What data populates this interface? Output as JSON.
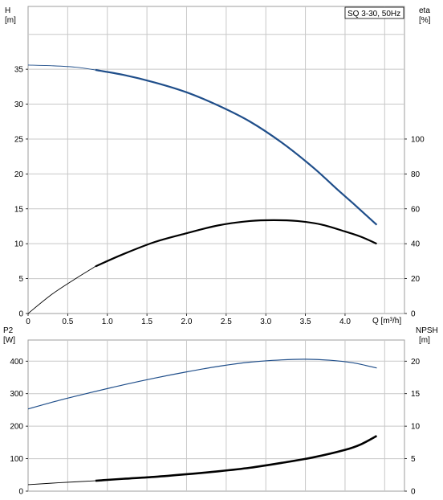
{
  "chart_data": [
    {
      "type": "line",
      "badge": "SQ 3-30, 50Hz",
      "x_axis": {
        "label": "Q [m³/h]",
        "range": [
          0,
          4.75
        ],
        "ticks": [
          0,
          0.5,
          1.0,
          1.5,
          2.0,
          2.5,
          3.0,
          3.5,
          4.0
        ],
        "tick_labels": [
          "0",
          "0.5",
          "1.0",
          "1.5",
          "2.0",
          "2.5",
          "3.0",
          "3.5",
          "4.0"
        ],
        "gridlines": [
          0.5,
          1,
          1.5,
          2,
          2.5,
          3,
          3.5,
          4,
          4.5
        ]
      },
      "left_axis": {
        "label_line1": "H",
        "label_line2": "[m]",
        "range": [
          0,
          44
        ],
        "ticks": [
          0,
          5,
          10,
          15,
          20,
          25,
          30,
          35
        ],
        "gridlines": [
          5,
          10,
          15,
          20,
          25,
          30,
          35,
          40
        ]
      },
      "right_axis": {
        "label_line1": "eta",
        "label_line2": "[%]",
        "range": [
          0,
          176
        ],
        "ticks": [
          0,
          20,
          40,
          60,
          80,
          100
        ]
      },
      "grid": true,
      "series": [
        {
          "axis": "left",
          "color": "#1f4e8a",
          "thin_until": 0.85,
          "x": [
            0,
            0.3,
            0.6,
            0.85,
            1.2,
            1.6,
            2.0,
            2.4,
            2.8,
            3.2,
            3.6,
            3.9,
            4.1,
            4.4
          ],
          "y": [
            35.6,
            35.5,
            35.3,
            34.9,
            34.2,
            33.1,
            31.7,
            29.8,
            27.5,
            24.5,
            20.9,
            17.8,
            15.8,
            12.7
          ]
        },
        {
          "axis": "right",
          "color": "#000000",
          "thin_until": 0.85,
          "x": [
            0,
            0.3,
            0.6,
            0.85,
            1.2,
            1.6,
            2.0,
            2.4,
            2.8,
            3.1,
            3.4,
            3.7,
            4.0,
            4.2,
            4.4
          ],
          "y": [
            0,
            11,
            20,
            27,
            34,
            41,
            46,
            50.5,
            53,
            53.5,
            53,
            51,
            47,
            44,
            40
          ]
        }
      ]
    },
    {
      "type": "line",
      "x_axis": {
        "range": [
          0,
          4.75
        ],
        "gridlines": [
          0.5,
          1,
          1.5,
          2,
          2.5,
          3,
          3.5,
          4,
          4.5
        ]
      },
      "left_axis": {
        "label_line1": "P2",
        "label_line2": "[W]",
        "range": [
          0,
          465
        ],
        "ticks": [
          0,
          100,
          200,
          300,
          400
        ],
        "gridlines": [
          100,
          200,
          300,
          400
        ]
      },
      "right_axis": {
        "label_line1": "NPSH",
        "label_line2": "[m]",
        "range": [
          0,
          23.25
        ],
        "ticks": [
          0,
          5,
          10,
          15,
          20
        ]
      },
      "grid": true,
      "series": [
        {
          "axis": "left",
          "color": "#1f4e8a",
          "thin_until": 0,
          "x": [
            0,
            0.4,
            0.8,
            1.2,
            1.6,
            2.0,
            2.4,
            2.8,
            3.2,
            3.5,
            3.8,
            4.1,
            4.4
          ],
          "y": [
            253,
            280,
            304,
            327,
            348,
            367,
            384,
            397,
            404,
            406,
            403,
            395,
            379
          ]
        },
        {
          "axis": "left",
          "color": "#000000",
          "thin_until": 0.85,
          "heavy": true,
          "x": [
            0,
            0.4,
            0.85,
            1.2,
            1.6,
            2.0,
            2.4,
            2.8,
            3.2,
            3.6,
            4.0,
            4.2,
            4.4
          ],
          "y": [
            20,
            26,
            32,
            38,
            44,
            52,
            61,
            72,
            87,
            104,
            127,
            144,
            170
          ]
        }
      ]
    }
  ]
}
